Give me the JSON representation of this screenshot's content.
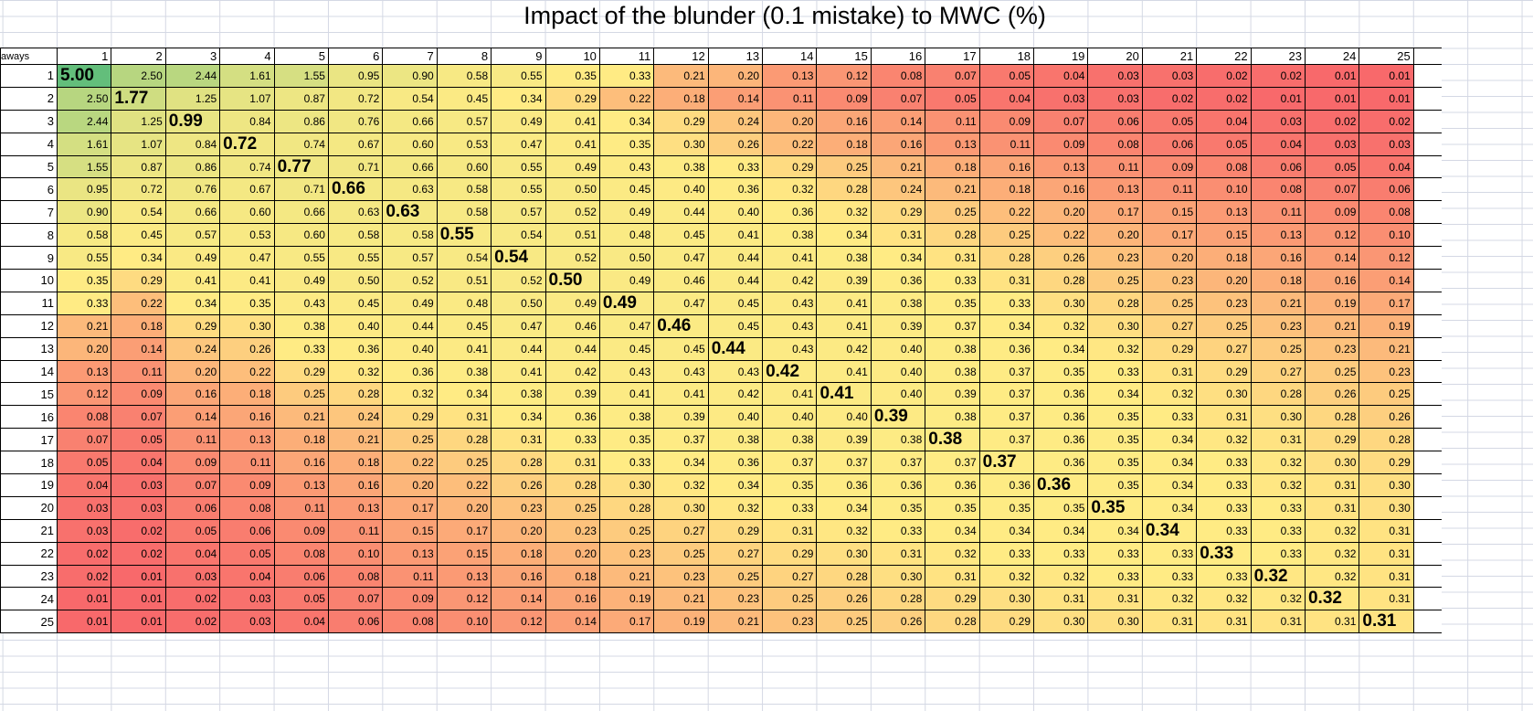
{
  "title": "Impact of the blunder (0.1 mistake) to MWC (%)",
  "corner_label": "aways",
  "color_scale": {
    "min": "#F8696B",
    "mid": "#FFEB84",
    "max": "#63BE7B",
    "mid_value": 0.33
  },
  "columns": [
    "1",
    "2",
    "3",
    "4",
    "5",
    "6",
    "7",
    "8",
    "9",
    "10",
    "11",
    "12",
    "13",
    "14",
    "15",
    "16",
    "17",
    "18",
    "19",
    "20",
    "21",
    "22",
    "23",
    "24",
    "25"
  ],
  "rows": [
    {
      "label": "1",
      "values": [
        "5.00",
        "2.50",
        "2.44",
        "1.61",
        "1.55",
        "0.95",
        "0.90",
        "0.58",
        "0.55",
        "0.35",
        "0.33",
        "0.21",
        "0.20",
        "0.13",
        "0.12",
        "0.08",
        "0.07",
        "0.05",
        "0.04",
        "0.03",
        "0.03",
        "0.02",
        "0.02",
        "0.01",
        "0.01"
      ]
    },
    {
      "label": "2",
      "values": [
        "2.50",
        "1.77",
        "1.25",
        "1.07",
        "0.87",
        "0.72",
        "0.54",
        "0.45",
        "0.34",
        "0.29",
        "0.22",
        "0.18",
        "0.14",
        "0.11",
        "0.09",
        "0.07",
        "0.05",
        "0.04",
        "0.03",
        "0.03",
        "0.02",
        "0.02",
        "0.01",
        "0.01",
        "0.01"
      ]
    },
    {
      "label": "3",
      "values": [
        "2.44",
        "1.25",
        "0.99",
        "0.84",
        "0.86",
        "0.76",
        "0.66",
        "0.57",
        "0.49",
        "0.41",
        "0.34",
        "0.29",
        "0.24",
        "0.20",
        "0.16",
        "0.14",
        "0.11",
        "0.09",
        "0.07",
        "0.06",
        "0.05",
        "0.04",
        "0.03",
        "0.02",
        "0.02"
      ]
    },
    {
      "label": "4",
      "values": [
        "1.61",
        "1.07",
        "0.84",
        "0.72",
        "0.74",
        "0.67",
        "0.60",
        "0.53",
        "0.47",
        "0.41",
        "0.35",
        "0.30",
        "0.26",
        "0.22",
        "0.18",
        "0.16",
        "0.13",
        "0.11",
        "0.09",
        "0.08",
        "0.06",
        "0.05",
        "0.04",
        "0.03",
        "0.03"
      ]
    },
    {
      "label": "5",
      "values": [
        "1.55",
        "0.87",
        "0.86",
        "0.74",
        "0.77",
        "0.71",
        "0.66",
        "0.60",
        "0.55",
        "0.49",
        "0.43",
        "0.38",
        "0.33",
        "0.29",
        "0.25",
        "0.21",
        "0.18",
        "0.16",
        "0.13",
        "0.11",
        "0.09",
        "0.08",
        "0.06",
        "0.05",
        "0.04"
      ]
    },
    {
      "label": "6",
      "values": [
        "0.95",
        "0.72",
        "0.76",
        "0.67",
        "0.71",
        "0.66",
        "0.63",
        "0.58",
        "0.55",
        "0.50",
        "0.45",
        "0.40",
        "0.36",
        "0.32",
        "0.28",
        "0.24",
        "0.21",
        "0.18",
        "0.16",
        "0.13",
        "0.11",
        "0.10",
        "0.08",
        "0.07",
        "0.06"
      ]
    },
    {
      "label": "7",
      "values": [
        "0.90",
        "0.54",
        "0.66",
        "0.60",
        "0.66",
        "0.63",
        "0.63",
        "0.58",
        "0.57",
        "0.52",
        "0.49",
        "0.44",
        "0.40",
        "0.36",
        "0.32",
        "0.29",
        "0.25",
        "0.22",
        "0.20",
        "0.17",
        "0.15",
        "0.13",
        "0.11",
        "0.09",
        "0.08"
      ]
    },
    {
      "label": "8",
      "values": [
        "0.58",
        "0.45",
        "0.57",
        "0.53",
        "0.60",
        "0.58",
        "0.58",
        "0.55",
        "0.54",
        "0.51",
        "0.48",
        "0.45",
        "0.41",
        "0.38",
        "0.34",
        "0.31",
        "0.28",
        "0.25",
        "0.22",
        "0.20",
        "0.17",
        "0.15",
        "0.13",
        "0.12",
        "0.10"
      ]
    },
    {
      "label": "9",
      "values": [
        "0.55",
        "0.34",
        "0.49",
        "0.47",
        "0.55",
        "0.55",
        "0.57",
        "0.54",
        "0.54",
        "0.52",
        "0.50",
        "0.47",
        "0.44",
        "0.41",
        "0.38",
        "0.34",
        "0.31",
        "0.28",
        "0.26",
        "0.23",
        "0.20",
        "0.18",
        "0.16",
        "0.14",
        "0.12"
      ]
    },
    {
      "label": "10",
      "values": [
        "0.35",
        "0.29",
        "0.41",
        "0.41",
        "0.49",
        "0.50",
        "0.52",
        "0.51",
        "0.52",
        "0.50",
        "0.49",
        "0.46",
        "0.44",
        "0.42",
        "0.39",
        "0.36",
        "0.33",
        "0.31",
        "0.28",
        "0.25",
        "0.23",
        "0.20",
        "0.18",
        "0.16",
        "0.14"
      ]
    },
    {
      "label": "11",
      "values": [
        "0.33",
        "0.22",
        "0.34",
        "0.35",
        "0.43",
        "0.45",
        "0.49",
        "0.48",
        "0.50",
        "0.49",
        "0.49",
        "0.47",
        "0.45",
        "0.43",
        "0.41",
        "0.38",
        "0.35",
        "0.33",
        "0.30",
        "0.28",
        "0.25",
        "0.23",
        "0.21",
        "0.19",
        "0.17"
      ]
    },
    {
      "label": "12",
      "values": [
        "0.21",
        "0.18",
        "0.29",
        "0.30",
        "0.38",
        "0.40",
        "0.44",
        "0.45",
        "0.47",
        "0.46",
        "0.47",
        "0.46",
        "0.45",
        "0.43",
        "0.41",
        "0.39",
        "0.37",
        "0.34",
        "0.32",
        "0.30",
        "0.27",
        "0.25",
        "0.23",
        "0.21",
        "0.19"
      ]
    },
    {
      "label": "13",
      "values": [
        "0.20",
        "0.14",
        "0.24",
        "0.26",
        "0.33",
        "0.36",
        "0.40",
        "0.41",
        "0.44",
        "0.44",
        "0.45",
        "0.45",
        "0.44",
        "0.43",
        "0.42",
        "0.40",
        "0.38",
        "0.36",
        "0.34",
        "0.32",
        "0.29",
        "0.27",
        "0.25",
        "0.23",
        "0.21"
      ]
    },
    {
      "label": "14",
      "values": [
        "0.13",
        "0.11",
        "0.20",
        "0.22",
        "0.29",
        "0.32",
        "0.36",
        "0.38",
        "0.41",
        "0.42",
        "0.43",
        "0.43",
        "0.43",
        "0.42",
        "0.41",
        "0.40",
        "0.38",
        "0.37",
        "0.35",
        "0.33",
        "0.31",
        "0.29",
        "0.27",
        "0.25",
        "0.23"
      ]
    },
    {
      "label": "15",
      "values": [
        "0.12",
        "0.09",
        "0.16",
        "0.18",
        "0.25",
        "0.28",
        "0.32",
        "0.34",
        "0.38",
        "0.39",
        "0.41",
        "0.41",
        "0.42",
        "0.41",
        "0.41",
        "0.40",
        "0.39",
        "0.37",
        "0.36",
        "0.34",
        "0.32",
        "0.30",
        "0.28",
        "0.26",
        "0.25"
      ]
    },
    {
      "label": "16",
      "values": [
        "0.08",
        "0.07",
        "0.14",
        "0.16",
        "0.21",
        "0.24",
        "0.29",
        "0.31",
        "0.34",
        "0.36",
        "0.38",
        "0.39",
        "0.40",
        "0.40",
        "0.40",
        "0.39",
        "0.38",
        "0.37",
        "0.36",
        "0.35",
        "0.33",
        "0.31",
        "0.30",
        "0.28",
        "0.26"
      ]
    },
    {
      "label": "17",
      "values": [
        "0.07",
        "0.05",
        "0.11",
        "0.13",
        "0.18",
        "0.21",
        "0.25",
        "0.28",
        "0.31",
        "0.33",
        "0.35",
        "0.37",
        "0.38",
        "0.38",
        "0.39",
        "0.38",
        "0.38",
        "0.37",
        "0.36",
        "0.35",
        "0.34",
        "0.32",
        "0.31",
        "0.29",
        "0.28"
      ]
    },
    {
      "label": "18",
      "values": [
        "0.05",
        "0.04",
        "0.09",
        "0.11",
        "0.16",
        "0.18",
        "0.22",
        "0.25",
        "0.28",
        "0.31",
        "0.33",
        "0.34",
        "0.36",
        "0.37",
        "0.37",
        "0.37",
        "0.37",
        "0.37",
        "0.36",
        "0.35",
        "0.34",
        "0.33",
        "0.32",
        "0.30",
        "0.29"
      ]
    },
    {
      "label": "19",
      "values": [
        "0.04",
        "0.03",
        "0.07",
        "0.09",
        "0.13",
        "0.16",
        "0.20",
        "0.22",
        "0.26",
        "0.28",
        "0.30",
        "0.32",
        "0.34",
        "0.35",
        "0.36",
        "0.36",
        "0.36",
        "0.36",
        "0.36",
        "0.35",
        "0.34",
        "0.33",
        "0.32",
        "0.31",
        "0.30"
      ]
    },
    {
      "label": "20",
      "values": [
        "0.03",
        "0.03",
        "0.06",
        "0.08",
        "0.11",
        "0.13",
        "0.17",
        "0.20",
        "0.23",
        "0.25",
        "0.28",
        "0.30",
        "0.32",
        "0.33",
        "0.34",
        "0.35",
        "0.35",
        "0.35",
        "0.35",
        "0.35",
        "0.34",
        "0.33",
        "0.33",
        "0.31",
        "0.30"
      ]
    },
    {
      "label": "21",
      "values": [
        "0.03",
        "0.02",
        "0.05",
        "0.06",
        "0.09",
        "0.11",
        "0.15",
        "0.17",
        "0.20",
        "0.23",
        "0.25",
        "0.27",
        "0.29",
        "0.31",
        "0.32",
        "0.33",
        "0.34",
        "0.34",
        "0.34",
        "0.34",
        "0.34",
        "0.33",
        "0.33",
        "0.32",
        "0.31"
      ]
    },
    {
      "label": "22",
      "values": [
        "0.02",
        "0.02",
        "0.04",
        "0.05",
        "0.08",
        "0.10",
        "0.13",
        "0.15",
        "0.18",
        "0.20",
        "0.23",
        "0.25",
        "0.27",
        "0.29",
        "0.30",
        "0.31",
        "0.32",
        "0.33",
        "0.33",
        "0.33",
        "0.33",
        "0.33",
        "0.33",
        "0.32",
        "0.31"
      ]
    },
    {
      "label": "23",
      "values": [
        "0.02",
        "0.01",
        "0.03",
        "0.04",
        "0.06",
        "0.08",
        "0.11",
        "0.13",
        "0.16",
        "0.18",
        "0.21",
        "0.23",
        "0.25",
        "0.27",
        "0.28",
        "0.30",
        "0.31",
        "0.32",
        "0.32",
        "0.33",
        "0.33",
        "0.33",
        "0.32",
        "0.32",
        "0.31"
      ]
    },
    {
      "label": "24",
      "values": [
        "0.01",
        "0.01",
        "0.02",
        "0.03",
        "0.05",
        "0.07",
        "0.09",
        "0.12",
        "0.14",
        "0.16",
        "0.19",
        "0.21",
        "0.23",
        "0.25",
        "0.26",
        "0.28",
        "0.29",
        "0.30",
        "0.31",
        "0.31",
        "0.32",
        "0.32",
        "0.32",
        "0.32",
        "0.31"
      ]
    },
    {
      "label": "25",
      "values": [
        "0.01",
        "0.01",
        "0.02",
        "0.03",
        "0.04",
        "0.06",
        "0.08",
        "0.10",
        "0.12",
        "0.14",
        "0.17",
        "0.19",
        "0.21",
        "0.23",
        "0.25",
        "0.26",
        "0.28",
        "0.29",
        "0.30",
        "0.30",
        "0.31",
        "0.31",
        "0.31",
        "0.31",
        "0.31"
      ]
    }
  ]
}
